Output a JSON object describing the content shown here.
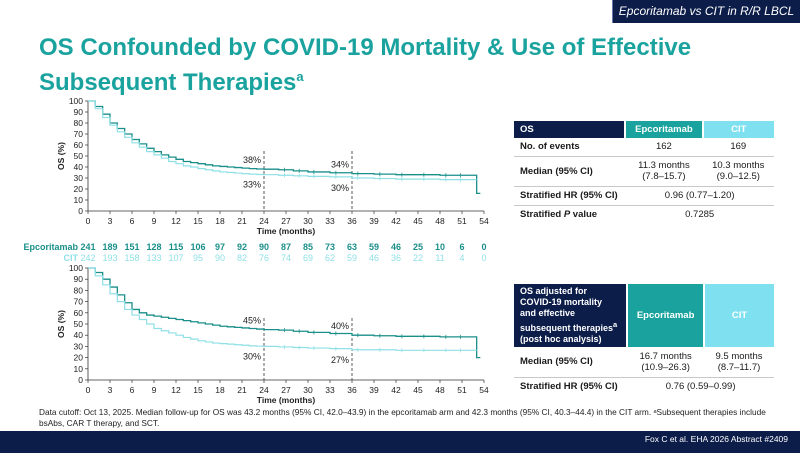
{
  "header": {
    "tag": "Epcoritamab vs CIT in R/R LBCL",
    "title": "OS Confounded by COVID-19 Mortality & Use of Effective Subsequent Therapies",
    "title_sup": "a"
  },
  "colors": {
    "epcoritamab": "#1a8f8a",
    "cit": "#8fe0e6",
    "navy": "#0c1d4a",
    "teal": "#1aa39e"
  },
  "chart_data": [
    {
      "type": "line",
      "name": "top-km",
      "ylabel": "OS (%)",
      "xlabel": "Time (months)",
      "xlim": [
        0,
        54
      ],
      "ylim": [
        0,
        100
      ],
      "xticks": [
        0,
        3,
        6,
        9,
        12,
        15,
        18,
        21,
        24,
        27,
        30,
        33,
        36,
        39,
        42,
        45,
        48,
        51,
        54
      ],
      "yticks": [
        0,
        10,
        20,
        30,
        40,
        50,
        60,
        70,
        80,
        90,
        100
      ],
      "annotations": [
        {
          "text": "38%",
          "x": 24,
          "y": 38,
          "pos": "above"
        },
        {
          "text": "33%",
          "x": 24,
          "y": 33,
          "pos": "below"
        },
        {
          "text": "34%",
          "x": 36,
          "y": 34,
          "pos": "above"
        },
        {
          "text": "30%",
          "x": 36,
          "y": 30,
          "pos": "below"
        }
      ],
      "series": [
        {
          "key": "epc",
          "x": [
            0,
            1,
            2,
            3,
            4,
            5,
            6,
            7,
            8,
            9,
            10,
            11,
            12,
            13,
            14,
            15,
            16,
            17,
            18,
            19,
            20,
            21,
            22,
            23,
            24,
            26,
            28,
            30,
            33,
            36,
            39,
            42,
            45,
            48,
            50,
            52.5,
            53,
            53.5
          ],
          "y": [
            100,
            95,
            88,
            80,
            75,
            70,
            65,
            61,
            57,
            54,
            51,
            49,
            47,
            45,
            44,
            43,
            42,
            41,
            40.5,
            40,
            39.5,
            39,
            38.5,
            38.2,
            38,
            37.5,
            36.5,
            35.5,
            34.8,
            34,
            33.5,
            33,
            33,
            32.5,
            32.5,
            32.5,
            16,
            16
          ]
        },
        {
          "key": "cit",
          "x": [
            0,
            1,
            2,
            3,
            4,
            5,
            6,
            7,
            8,
            9,
            10,
            11,
            12,
            13,
            14,
            15,
            16,
            17,
            18,
            19,
            20,
            21,
            22,
            23,
            24,
            26,
            28,
            30,
            33,
            36,
            39,
            42,
            45,
            48,
            50,
            52,
            53
          ],
          "y": [
            100,
            93,
            85,
            78,
            72,
            67,
            62,
            58,
            54,
            51,
            48,
            45,
            43,
            41,
            40,
            38.5,
            37.5,
            36.5,
            35.5,
            35,
            34.5,
            34,
            33.5,
            33.2,
            33,
            32.5,
            32,
            31.5,
            31,
            30,
            29.5,
            29,
            29,
            28.5,
            28.5,
            28.5,
            28.5
          ]
        }
      ]
    },
    {
      "type": "line",
      "name": "bottom-km",
      "ylabel": "OS (%)",
      "xlabel": "Time (months)",
      "xlim": [
        0,
        54
      ],
      "ylim": [
        0,
        100
      ],
      "xticks": [
        0,
        3,
        6,
        9,
        12,
        15,
        18,
        21,
        24,
        27,
        30,
        33,
        36,
        39,
        42,
        45,
        48,
        51,
        54
      ],
      "yticks": [
        0,
        10,
        20,
        30,
        40,
        50,
        60,
        70,
        80,
        90,
        100
      ],
      "annotations": [
        {
          "text": "45%",
          "x": 24,
          "y": 45,
          "pos": "above"
        },
        {
          "text": "30%",
          "x": 24,
          "y": 30,
          "pos": "below"
        },
        {
          "text": "40%",
          "x": 36,
          "y": 40,
          "pos": "above"
        },
        {
          "text": "27%",
          "x": 36,
          "y": 27,
          "pos": "below"
        }
      ],
      "series": [
        {
          "key": "epc",
          "x": [
            0,
            1,
            2,
            3,
            4,
            5,
            6,
            7,
            8,
            9,
            10,
            11,
            12,
            13,
            14,
            15,
            16,
            17,
            18,
            19,
            20,
            21,
            22,
            23,
            24,
            26,
            28,
            30,
            33,
            36,
            39,
            42,
            45,
            48,
            50,
            52.5,
            53,
            53.5
          ],
          "y": [
            100,
            96,
            90,
            83,
            76,
            69,
            63,
            60,
            58,
            57,
            56,
            55,
            54,
            53,
            52,
            51,
            50,
            49,
            48,
            47.5,
            47,
            46.5,
            46,
            45.5,
            45,
            44.5,
            43.5,
            42.5,
            41.5,
            40,
            39.5,
            39,
            39,
            38.5,
            38.5,
            38.5,
            20,
            20
          ]
        },
        {
          "key": "cit",
          "x": [
            0,
            1,
            2,
            3,
            4,
            5,
            6,
            7,
            8,
            9,
            10,
            11,
            12,
            13,
            14,
            15,
            16,
            17,
            18,
            19,
            20,
            21,
            22,
            23,
            24,
            26,
            28,
            30,
            33,
            36,
            39,
            42,
            45,
            48,
            50,
            52,
            53
          ],
          "y": [
            100,
            93,
            85,
            77,
            70,
            63,
            58,
            54,
            50,
            46,
            44,
            42,
            40,
            38,
            36.5,
            35,
            34,
            33,
            32.5,
            32,
            31.5,
            31,
            30.5,
            30.2,
            30,
            29.5,
            29,
            28.5,
            28,
            27,
            27,
            26.5,
            26.5,
            26.5,
            26.5,
            26.5,
            26.5
          ]
        }
      ]
    }
  ],
  "risk_table": {
    "epc_label": "Epcoritamab",
    "cit_label": "CIT",
    "epc": [
      "241",
      "189",
      "151",
      "128",
      "115",
      "106",
      "97",
      "92",
      "90",
      "87",
      "85",
      "73",
      "63",
      "59",
      "46",
      "25",
      "10",
      "6",
      "0"
    ],
    "cit": [
      "242",
      "193",
      "158",
      "133",
      "107",
      "95",
      "90",
      "82",
      "76",
      "74",
      "69",
      "62",
      "59",
      "46",
      "36",
      "22",
      "11",
      "4",
      "0"
    ]
  },
  "table1": {
    "header": [
      "OS",
      "Epcoritamab",
      "CIT"
    ],
    "rows": [
      {
        "label": "No. of events",
        "epc": "162",
        "cit": "169"
      },
      {
        "label": "Median (95% CI)",
        "epc": "11.3 months",
        "epc2": "(7.8–15.7)",
        "cit": "10.3 months",
        "cit2": "(9.0–12.5)"
      },
      {
        "label": "Stratified HR (95% CI)",
        "merged": "0.96 (0.77–1.20)"
      },
      {
        "label_pre": "Stratified ",
        "label_italic": "P",
        "label_post": " value",
        "merged": "0.7285"
      }
    ]
  },
  "table2": {
    "header_main": "OS adjusted for COVID-19 mortality and effective subsequent therapies",
    "header_sup": "a",
    "header_tail": " (post hoc analysis)",
    "header_epc": "Epcoritamab",
    "header_cit": "CIT",
    "rows": [
      {
        "label": "Median (95% CI)",
        "epc": "16.7 months",
        "epc2": "(10.9–26.3)",
        "cit": "9.5 months",
        "cit2": "(8.7–11.7)"
      },
      {
        "label": "Stratified HR (95% CI)",
        "merged": "0.76 (0.59–0.99)"
      }
    ]
  },
  "footnote": "Data cutoff: Oct 13, 2025. Median follow-up for OS was 43.2 months (95% CI, 42.0–43.9) in the epcoritamab arm and 42.3 months (95% CI, 40.3–44.4) in the CIT arm. ᵃSubsequent therapies include bsAbs, CAR T therapy, and SCT.",
  "citation": "Fox C et al. EHA 2026 Abstract #2409"
}
